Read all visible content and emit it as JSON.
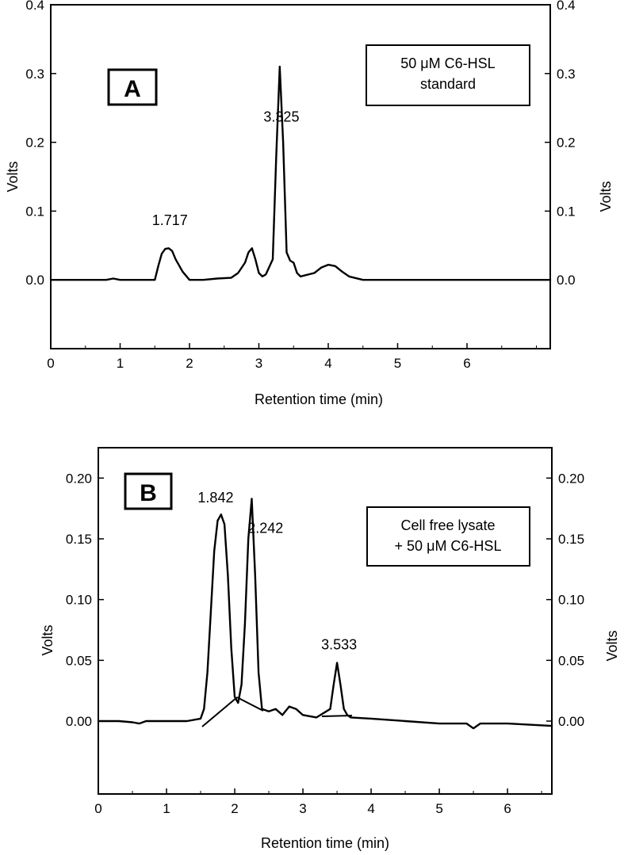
{
  "chart_data": [
    {
      "type": "line",
      "panel_label": "A",
      "legend_lines": [
        "50 μM C6-HSL",
        "standard"
      ],
      "xlabel": "Retention time (min)",
      "ylabel_left": "Volts",
      "ylabel_right": "Volts",
      "xlim": [
        0,
        7.2
      ],
      "ylim": [
        -0.1,
        0.4
      ],
      "x_ticks": [
        "0",
        "1",
        "2",
        "3",
        "4",
        "5",
        "6"
      ],
      "y_ticks_left": [
        "0.0",
        "0.1",
        "0.2",
        "0.3",
        "0.4"
      ],
      "y_ticks_right": [
        "0.0",
        "0.1",
        "0.2",
        "0.3",
        "0.4"
      ],
      "peak_labels": [
        {
          "text": "1.717",
          "x": 1.717,
          "y": 0.08
        },
        {
          "text": "3.325",
          "x": 3.325,
          "y": 0.23
        }
      ],
      "series": [
        {
          "x": [
            0,
            0.5,
            0.8,
            0.9,
            1.0,
            1.2,
            1.5,
            1.55,
            1.6,
            1.65,
            1.7,
            1.75,
            1.8,
            1.9,
            2.0,
            2.1,
            2.2,
            2.4,
            2.6,
            2.7,
            2.8,
            2.85,
            2.9,
            2.95,
            3.0,
            3.05,
            3.1,
            3.2,
            3.25,
            3.3,
            3.35,
            3.4,
            3.45,
            3.5,
            3.55,
            3.6,
            3.8,
            3.9,
            4.0,
            4.1,
            4.2,
            4.3,
            4.5,
            5.0,
            6.0,
            7.2
          ],
          "y": [
            0.0,
            0.0,
            0.0,
            0.002,
            0.0,
            0.0,
            0.0,
            0.02,
            0.038,
            0.045,
            0.046,
            0.042,
            0.03,
            0.012,
            0.0,
            0.0,
            0.0,
            0.002,
            0.003,
            0.01,
            0.025,
            0.04,
            0.046,
            0.03,
            0.01,
            0.005,
            0.008,
            0.03,
            0.18,
            0.31,
            0.2,
            0.04,
            0.028,
            0.025,
            0.01,
            0.005,
            0.01,
            0.018,
            0.022,
            0.02,
            0.012,
            0.005,
            0.0,
            0.0,
            0.0,
            0.0
          ]
        }
      ]
    },
    {
      "type": "line",
      "panel_label": "B",
      "legend_lines": [
        "Cell free lysate",
        "+ 50 μM C6-HSL"
      ],
      "xlabel": "Retention time (min)",
      "ylabel_left": "Volts",
      "ylabel_right": "Volts",
      "xlim": [
        0,
        6.65
      ],
      "ylim": [
        -0.06,
        0.225
      ],
      "x_ticks": [
        "0",
        "1",
        "2",
        "3",
        "4",
        "5",
        "6"
      ],
      "y_ticks_left": [
        "0.00",
        "0.05",
        "0.10",
        "0.15",
        "0.20"
      ],
      "y_ticks_right": [
        "0.00",
        "0.05",
        "0.10",
        "0.15",
        "0.20"
      ],
      "peak_labels": [
        {
          "text": "1.842",
          "x": 1.72,
          "y": 0.18
        },
        {
          "text": "2.242",
          "x": 2.45,
          "y": 0.155
        },
        {
          "text": "3.533",
          "x": 3.53,
          "y": 0.059
        }
      ],
      "series": [
        {
          "x": [
            0,
            0.3,
            0.5,
            0.6,
            0.7,
            1.0,
            1.3,
            1.5,
            1.55,
            1.6,
            1.65,
            1.7,
            1.75,
            1.8,
            1.85,
            1.9,
            1.95,
            2.0,
            2.05,
            2.1,
            2.15,
            2.2,
            2.25,
            2.3,
            2.35,
            2.4,
            2.5,
            2.6,
            2.7,
            2.8,
            2.9,
            3.0,
            3.2,
            3.4,
            3.45,
            3.5,
            3.55,
            3.6,
            3.65,
            3.7,
            4.0,
            4.5,
            5.0,
            5.4,
            5.5,
            5.6,
            6.0,
            6.65
          ],
          "y": [
            0.0,
            0.0,
            -0.001,
            -0.002,
            0.0,
            0.0,
            0.0,
            0.002,
            0.01,
            0.04,
            0.09,
            0.14,
            0.165,
            0.17,
            0.162,
            0.12,
            0.06,
            0.02,
            0.015,
            0.03,
            0.08,
            0.15,
            0.183,
            0.12,
            0.04,
            0.01,
            0.008,
            0.01,
            0.005,
            0.012,
            0.01,
            0.005,
            0.003,
            0.01,
            0.03,
            0.048,
            0.03,
            0.01,
            0.005,
            0.003,
            0.002,
            0.0,
            -0.002,
            -0.002,
            -0.006,
            -0.002,
            -0.002,
            -0.004
          ]
        }
      ]
    }
  ]
}
